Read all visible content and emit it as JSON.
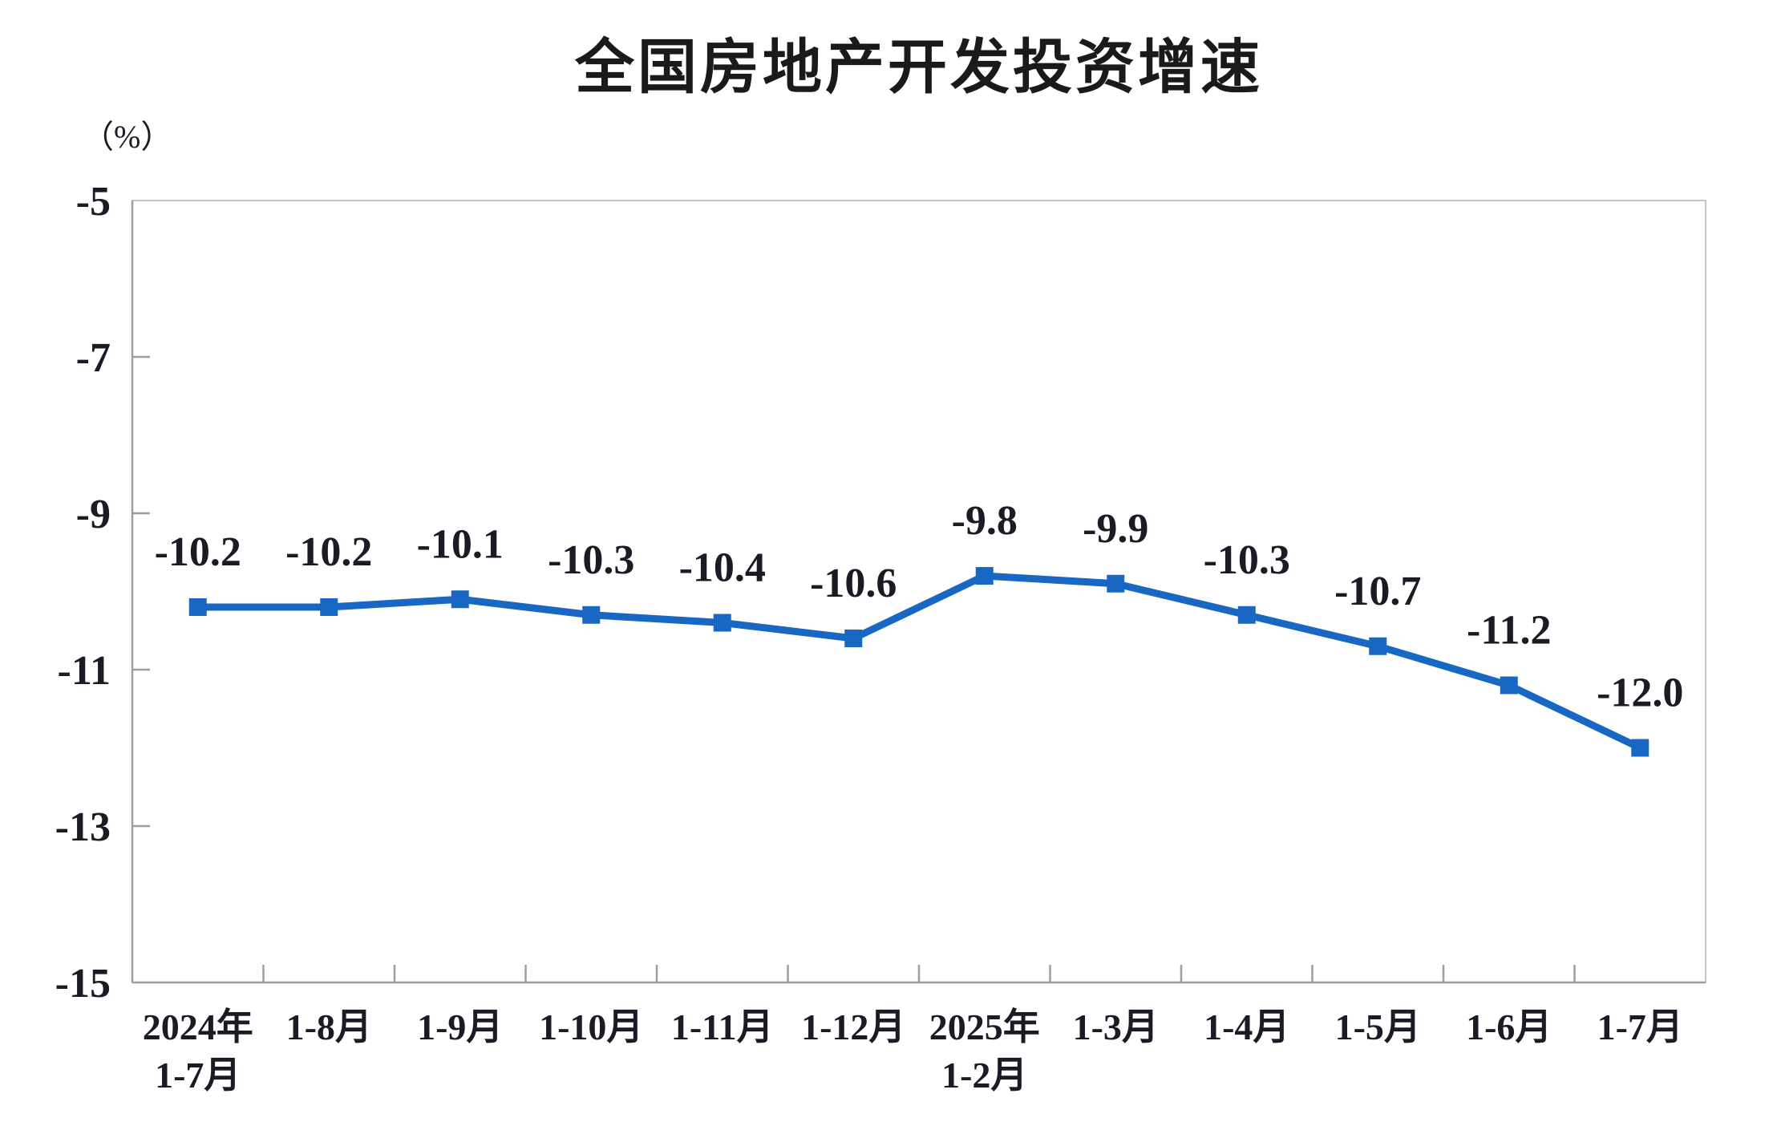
{
  "page": {
    "background": "#ffffff"
  },
  "chart_data": {
    "type": "line",
    "title": "全国房地产开发投资增速",
    "unit_label": "（%）",
    "categories": [
      [
        "2024年",
        "1-7月"
      ],
      [
        "1-8月"
      ],
      [
        "1-9月"
      ],
      [
        "1-10月"
      ],
      [
        "1-11月"
      ],
      [
        "1-12月"
      ],
      [
        "2025年",
        "1-2月"
      ],
      [
        "1-3月"
      ],
      [
        "1-4月"
      ],
      [
        "1-5月"
      ],
      [
        "1-6月"
      ],
      [
        "1-7月"
      ]
    ],
    "values": [
      -10.2,
      -10.2,
      -10.1,
      -10.3,
      -10.4,
      -10.6,
      -9.8,
      -9.9,
      -10.3,
      -10.7,
      -11.2,
      -12.0
    ],
    "point_labels": [
      "-10.2",
      "-10.2",
      "-10.1",
      "-10.3",
      "-10.4",
      "-10.6",
      "-9.8",
      "-9.9",
      "-10.3",
      "-10.7",
      "-11.2",
      "-12.0"
    ],
    "y_ticks": [
      "-5",
      "-7",
      "-9",
      "-11",
      "-13",
      "-15"
    ],
    "ylim": [
      -15,
      -5
    ],
    "xlabel": "",
    "ylabel": "（%）",
    "grid": false,
    "legend": false,
    "marker": "square",
    "colors": {
      "line": "#1868C3",
      "marker": "#1868C3",
      "axis": "#9E9E9E",
      "border": "#C6C6C6",
      "text": "#1B1B26",
      "title": "#1A1A1A"
    }
  }
}
